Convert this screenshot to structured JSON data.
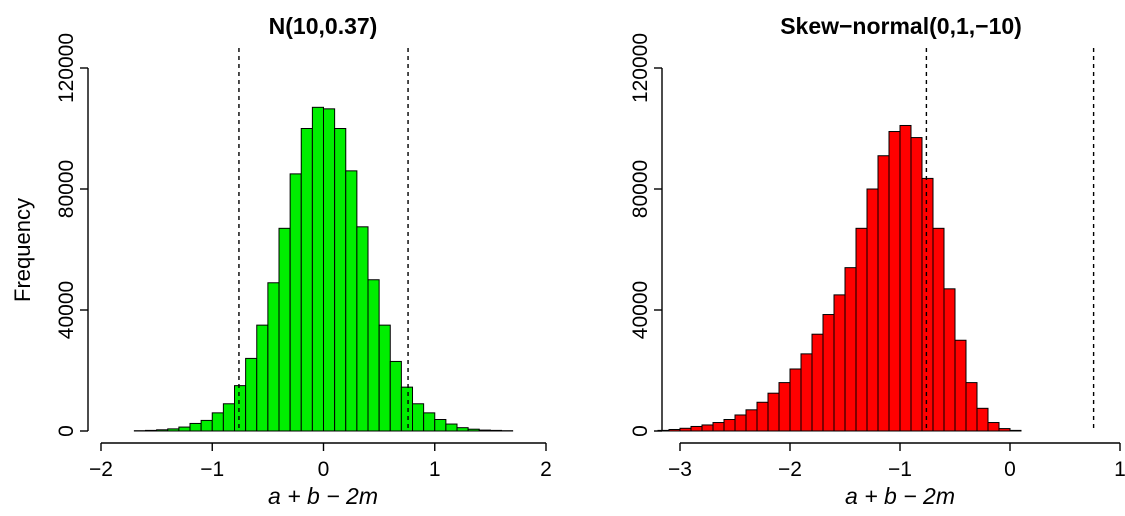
{
  "chart_data": [
    {
      "type": "bar",
      "title": "N(10,0.37)",
      "xlabel": "a + b − 2m",
      "ylabel": "Frequency",
      "bar_color": "#00EE00",
      "border_color": "#000000",
      "xlim": [
        -2,
        2
      ],
      "ylim": [
        0,
        120000
      ],
      "x_ticks": [
        "−2",
        "−1",
        "0",
        "1",
        "2"
      ],
      "y_ticks": [
        "0",
        "40000",
        "80000",
        "120000"
      ],
      "reference_lines": [
        -0.76,
        0.76
      ],
      "bin_width": 0.1,
      "bins": [
        {
          "x0": -2.0,
          "value": 0
        },
        {
          "x0": -1.9,
          "value": 0
        },
        {
          "x0": -1.8,
          "value": 0
        },
        {
          "x0": -1.7,
          "value": 100
        },
        {
          "x0": -1.6,
          "value": 200
        },
        {
          "x0": -1.5,
          "value": 400
        },
        {
          "x0": -1.4,
          "value": 700
        },
        {
          "x0": -1.3,
          "value": 1300
        },
        {
          "x0": -1.2,
          "value": 2500
        },
        {
          "x0": -1.1,
          "value": 3500
        },
        {
          "x0": -1.0,
          "value": 6000
        },
        {
          "x0": -0.9,
          "value": 9000
        },
        {
          "x0": -0.8,
          "value": 15000
        },
        {
          "x0": -0.7,
          "value": 24000
        },
        {
          "x0": -0.6,
          "value": 35000
        },
        {
          "x0": -0.5,
          "value": 49000
        },
        {
          "x0": -0.4,
          "value": 67000
        },
        {
          "x0": -0.3,
          "value": 85000
        },
        {
          "x0": -0.2,
          "value": 100000
        },
        {
          "x0": -0.1,
          "value": 107000
        },
        {
          "x0": 0.0,
          "value": 106500
        },
        {
          "x0": 0.1,
          "value": 100000
        },
        {
          "x0": 0.2,
          "value": 86000
        },
        {
          "x0": 0.3,
          "value": 67500
        },
        {
          "x0": 0.4,
          "value": 50000
        },
        {
          "x0": 0.5,
          "value": 35000
        },
        {
          "x0": 0.6,
          "value": 23000
        },
        {
          "x0": 0.7,
          "value": 14500
        },
        {
          "x0": 0.8,
          "value": 9000
        },
        {
          "x0": 0.9,
          "value": 6000
        },
        {
          "x0": 1.0,
          "value": 3800
        },
        {
          "x0": 1.1,
          "value": 2300
        },
        {
          "x0": 1.2,
          "value": 1100
        },
        {
          "x0": 1.3,
          "value": 600
        },
        {
          "x0": 1.4,
          "value": 300
        },
        {
          "x0": 1.5,
          "value": 200
        },
        {
          "x0": 1.6,
          "value": 100
        },
        {
          "x0": 1.7,
          "value": 0
        },
        {
          "x0": 1.8,
          "value": 0
        },
        {
          "x0": 1.9,
          "value": 0
        }
      ]
    },
    {
      "type": "bar",
      "title": "Skew−normal(0,1,−10)",
      "xlabel": "a + b − 2m",
      "ylabel": "",
      "bar_color": "#FF0000",
      "border_color": "#000000",
      "xlim": [
        -3.2,
        1.1
      ],
      "ylim": [
        0,
        120000
      ],
      "x_ticks": [
        "−3",
        "−2",
        "−1",
        "0",
        "1"
      ],
      "y_ticks": [
        "0",
        "40000",
        "80000",
        "120000"
      ],
      "reference_lines": [
        -0.76,
        0.76
      ],
      "bin_width": 0.1,
      "bins": [
        {
          "x0": -3.2,
          "value": 200
        },
        {
          "x0": -3.1,
          "value": 500
        },
        {
          "x0": -3.0,
          "value": 900
        },
        {
          "x0": -2.9,
          "value": 1500
        },
        {
          "x0": -2.8,
          "value": 2000
        },
        {
          "x0": -2.7,
          "value": 2800
        },
        {
          "x0": -2.6,
          "value": 3800
        },
        {
          "x0": -2.5,
          "value": 5300
        },
        {
          "x0": -2.4,
          "value": 7000
        },
        {
          "x0": -2.3,
          "value": 9500
        },
        {
          "x0": -2.2,
          "value": 12500
        },
        {
          "x0": -2.1,
          "value": 16000
        },
        {
          "x0": -2.0,
          "value": 20500
        },
        {
          "x0": -1.9,
          "value": 25500
        },
        {
          "x0": -1.8,
          "value": 32000
        },
        {
          "x0": -1.7,
          "value": 38500
        },
        {
          "x0": -1.6,
          "value": 45000
        },
        {
          "x0": -1.5,
          "value": 54000
        },
        {
          "x0": -1.4,
          "value": 67000
        },
        {
          "x0": -1.3,
          "value": 80000
        },
        {
          "x0": -1.2,
          "value": 91000
        },
        {
          "x0": -1.1,
          "value": 99000
        },
        {
          "x0": -1.0,
          "value": 101000
        },
        {
          "x0": -0.9,
          "value": 97000
        },
        {
          "x0": -0.8,
          "value": 83500
        },
        {
          "x0": -0.7,
          "value": 67000
        },
        {
          "x0": -0.6,
          "value": 47000
        },
        {
          "x0": -0.5,
          "value": 30000
        },
        {
          "x0": -0.4,
          "value": 16000
        },
        {
          "x0": -0.3,
          "value": 7500
        },
        {
          "x0": -0.2,
          "value": 2800
        },
        {
          "x0": -0.1,
          "value": 800
        },
        {
          "x0": 0.0,
          "value": 200
        }
      ]
    }
  ]
}
